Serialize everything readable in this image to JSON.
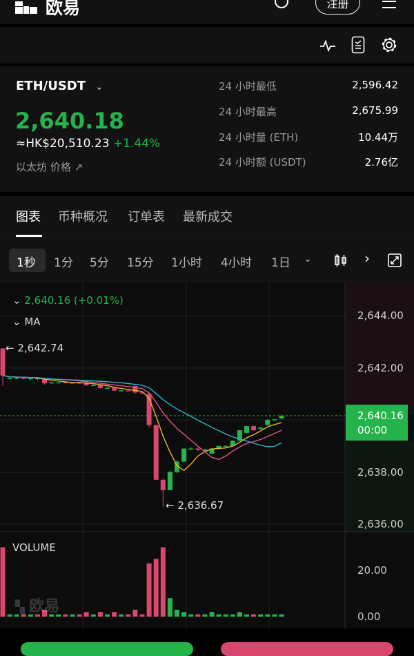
{
  "header": {
    "logo_text": "欧易",
    "register_label": "注册"
  },
  "pair": {
    "symbol": "ETH/USDT",
    "price": "2,640.18",
    "fiat_price": "≈HK$20,510.23",
    "change": "+1.44%",
    "link_label": "以太坊 价格"
  },
  "stats": [
    {
      "label": "24 小时最低",
      "value": "2,596.42"
    },
    {
      "label": "24 小时最高",
      "value": "2,675.99"
    },
    {
      "label": "24 小时量 (ETH)",
      "value": "10.44万"
    },
    {
      "label": "24 小时额 (USDT)",
      "value": "2.76亿"
    }
  ],
  "tabs": [
    {
      "label": "图表",
      "active": true
    },
    {
      "label": "币种概况"
    },
    {
      "label": "订单表"
    },
    {
      "label": "最新成交"
    }
  ],
  "intervals": [
    {
      "label": "1秒",
      "active": true
    },
    {
      "label": "1分"
    },
    {
      "label": "5分"
    },
    {
      "label": "15分"
    },
    {
      "label": "1小时"
    },
    {
      "label": "4小时"
    },
    {
      "label": "1日"
    }
  ],
  "colors": {
    "up": "#25b34b",
    "down": "#d9466e",
    "ma1": "#f0b232",
    "ma2": "#e0538c",
    "ma3": "#27b3c9",
    "bg": "#121212"
  },
  "chart": {
    "legend_price": "2,640.16 (+0.01%)",
    "ma_label": "MA",
    "volume_label": "VOLUME",
    "high_label": "2,642.74",
    "low_label": "2,636.67",
    "current_price": "2,640.16",
    "countdown": "00:00",
    "watermark": "欧易"
  },
  "chart_data": {
    "type": "candlestick",
    "price_ticks": [
      "2,644.00",
      "2,642.00",
      "2,640.16",
      "2,638.00",
      "2,636.00"
    ],
    "price_range": [
      2636,
      2644
    ],
    "volume_ticks": [
      "20.00",
      "0.00"
    ],
    "volume_range": [
      0,
      20
    ],
    "candles": [
      [
        2642.74,
        2642.74,
        2641.3,
        2641.7,
        30
      ],
      [
        2641.6,
        2641.65,
        2641.55,
        2641.6,
        1
      ],
      [
        2641.6,
        2641.65,
        2641.55,
        2641.62,
        1
      ],
      [
        2641.62,
        2641.65,
        2641.55,
        2641.6,
        1
      ],
      [
        2641.6,
        2641.62,
        2641.5,
        2641.6,
        1
      ],
      [
        2641.6,
        2641.62,
        2641.5,
        2641.58,
        1
      ],
      [
        2641.6,
        2641.62,
        2641.35,
        2641.4,
        3
      ],
      [
        2641.42,
        2641.45,
        2641.38,
        2641.44,
        1
      ],
      [
        2641.44,
        2641.46,
        2641.4,
        2641.44,
        1
      ],
      [
        2641.44,
        2641.46,
        2641.4,
        2641.43,
        1
      ],
      [
        2641.43,
        2641.45,
        2641.4,
        2641.43,
        1
      ],
      [
        2641.43,
        2641.45,
        2641.4,
        2641.42,
        1
      ],
      [
        2641.42,
        2641.44,
        2641.3,
        2641.33,
        2
      ],
      [
        2641.33,
        2641.36,
        2641.3,
        2641.34,
        1
      ],
      [
        2641.34,
        2641.36,
        2641.2,
        2641.22,
        2
      ],
      [
        2641.22,
        2641.25,
        2641.2,
        2641.23,
        1
      ],
      [
        2641.23,
        2641.25,
        2641.1,
        2641.12,
        2
      ],
      [
        2641.12,
        2641.15,
        2641.1,
        2641.13,
        1
      ],
      [
        2641.13,
        2641.15,
        2641.1,
        2641.12,
        1
      ],
      [
        2641.3,
        2641.32,
        2641.0,
        2641.05,
        3
      ],
      [
        2641.05,
        2641.07,
        2641.0,
        2641.02,
        1
      ],
      [
        2641.0,
        2641.02,
        2639.7,
        2639.8,
        23
      ],
      [
        2639.8,
        2639.8,
        2637.7,
        2637.7,
        25
      ],
      [
        2637.7,
        2637.75,
        2636.67,
        2637.3,
        30
      ],
      [
        2637.3,
        2638.05,
        2637.3,
        2638.0,
        8
      ],
      [
        2638.0,
        2638.45,
        2637.95,
        2638.4,
        3
      ],
      [
        2638.4,
        2638.9,
        2638.35,
        2638.9,
        2
      ],
      [
        2638.9,
        2638.95,
        2638.85,
        2638.9,
        1
      ],
      [
        2638.9,
        2638.95,
        2638.8,
        2638.85,
        1
      ],
      [
        2638.85,
        2638.9,
        2638.8,
        2638.86,
        1
      ],
      [
        2638.7,
        2638.92,
        2638.7,
        2638.9,
        2
      ],
      [
        2638.9,
        2639.0,
        2638.88,
        2639.0,
        1
      ],
      [
        2638.98,
        2639.02,
        2638.95,
        2639.0,
        1
      ],
      [
        2639.0,
        2639.22,
        2639.0,
        2639.2,
        1
      ],
      [
        2639.2,
        2639.6,
        2639.18,
        2639.6,
        2
      ],
      [
        2639.5,
        2639.76,
        2639.48,
        2639.76,
        1
      ],
      [
        2639.76,
        2639.78,
        2639.58,
        2639.6,
        1
      ],
      [
        2639.65,
        2639.72,
        2639.62,
        2639.7,
        1
      ],
      [
        2639.8,
        2640.02,
        2639.78,
        2640.0,
        1
      ],
      [
        2640.0,
        2640.04,
        2639.98,
        2640.02,
        1
      ],
      [
        2640.05,
        2640.18,
        2640.02,
        2640.16,
        1
      ]
    ]
  }
}
